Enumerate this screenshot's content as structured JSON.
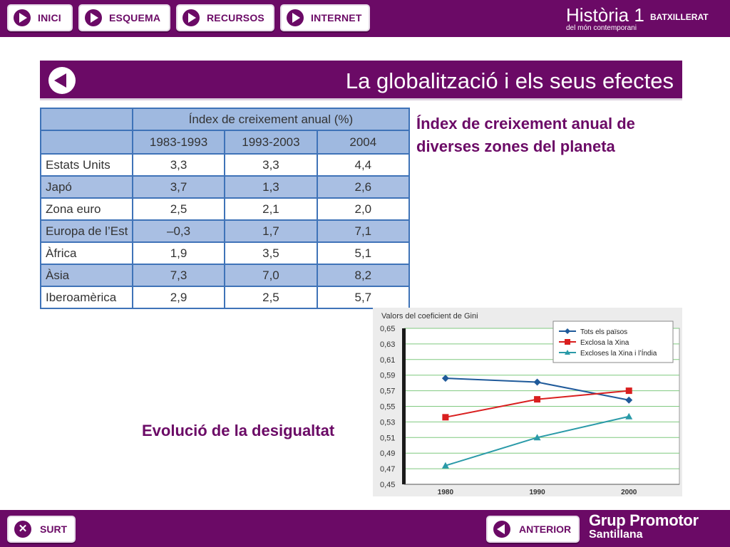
{
  "nav": {
    "items": [
      {
        "label": "INICI"
      },
      {
        "label": "ESQUEMA"
      },
      {
        "label": "RECURSOS"
      },
      {
        "label": "INTERNET"
      }
    ]
  },
  "brand": {
    "title": "Història 1",
    "subtitle": "BATXILLERAT",
    "line2": "del món contemporani"
  },
  "banner": {
    "title": "La globalització i els seus efectes"
  },
  "table": {
    "main_header": "Índex de creixement anual (%)",
    "columns": [
      "1983-1993",
      "1993-2003",
      "2004"
    ],
    "rows": [
      {
        "zone": "Estats Units",
        "values": [
          "3,3",
          "3,3",
          "4,4"
        ]
      },
      {
        "zone": "Japó",
        "values": [
          "3,7",
          "1,3",
          "2,6"
        ]
      },
      {
        "zone": "Zona euro",
        "values": [
          "2,5",
          "2,1",
          "2,0"
        ]
      },
      {
        "zone": "Europa de l’Est",
        "values": [
          "–0,3",
          "1,7",
          "7,1"
        ]
      },
      {
        "zone": "Àfrica",
        "values": [
          "1,9",
          "3,5",
          "5,1"
        ]
      },
      {
        "zone": "Àsia",
        "values": [
          "7,3",
          "7,0",
          "8,2"
        ]
      },
      {
        "zone": "Iberoamèrica",
        "values": [
          "2,9",
          "2,5",
          "5,7"
        ]
      }
    ]
  },
  "captions": {
    "table": "Índex de creixement anual de diverses zones del planeta",
    "chart": "Evolució de la desigualtat"
  },
  "chart_data": {
    "type": "line",
    "title": "Valors del coeficient de Gini",
    "x": [
      1980,
      1990,
      2000
    ],
    "ylim": [
      0.45,
      0.65
    ],
    "yticks": [
      "0,45",
      "0,47",
      "0,49",
      "0,51",
      "0,53",
      "0,55",
      "0,57",
      "0,59",
      "0,61",
      "0,63",
      "0,65"
    ],
    "grid": true,
    "legend_position": "top-right",
    "series": [
      {
        "name": "Tots els països",
        "values": [
          0.586,
          0.581,
          0.558
        ],
        "color": "#1f5a9a",
        "marker": "diamond"
      },
      {
        "name": "Exclosa la Xina",
        "values": [
          0.536,
          0.559,
          0.57
        ],
        "color": "#d91f1f",
        "marker": "square"
      },
      {
        "name": "Excloses la Xina i l’Índia",
        "values": [
          0.474,
          0.51,
          0.537
        ],
        "color": "#2a9aa8",
        "marker": "triangle"
      }
    ]
  },
  "footer": {
    "exit_label": "SURT",
    "prev_label": "ANTERIOR",
    "publisher_line1": "Grup Promotor",
    "publisher_line2": "Santillana"
  },
  "colors": {
    "brand_purple": "#6b0a66",
    "table_border": "#3f73b8",
    "table_shade": "#a9bfe3"
  }
}
